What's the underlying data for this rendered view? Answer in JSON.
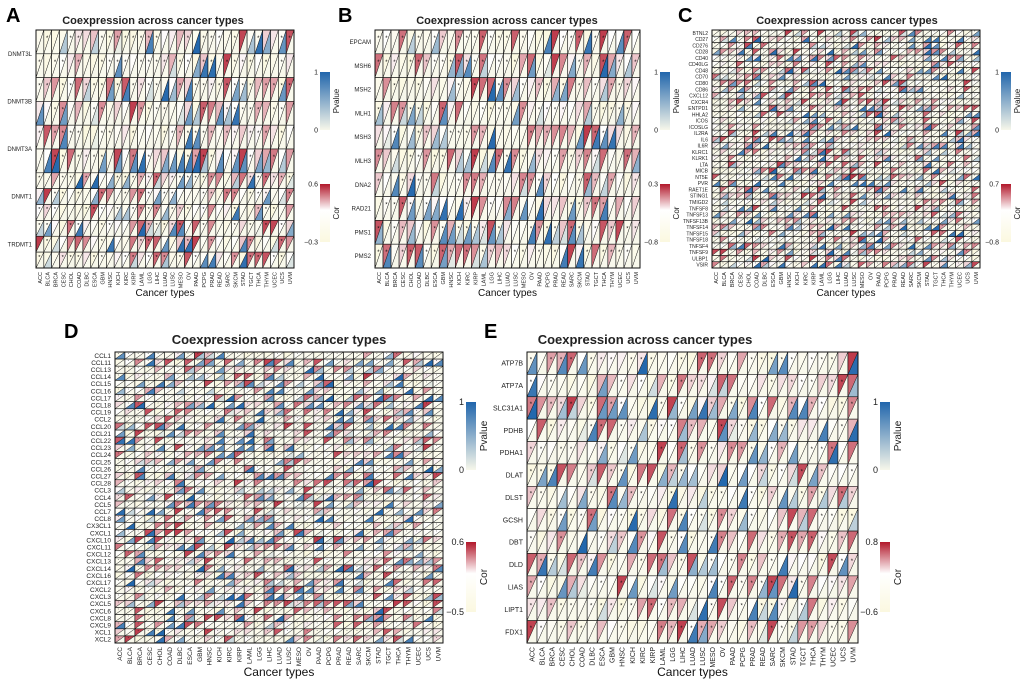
{
  "figure": {
    "panel_titles": {
      "A": "Coexpression across cancer types",
      "B": "Coexpression across cancer types",
      "C": "Coexpression across cancer types",
      "D": "Coexpression across cancer types",
      "E": "Coexpression across cancer types"
    },
    "x_axis_label": "Cancer types"
  },
  "colors": {
    "pvalue_high": "#2166ac",
    "pvalue_low": "#f7f7ea",
    "cor_high": "#b2182b",
    "cor_low": "#fbf8e0",
    "cor_mid": "#ffffff",
    "border": "#111111"
  },
  "chart_data": [
    {
      "panel": "A",
      "type": "heatmap",
      "title": "Coexpression across cancer types",
      "xlabel": "Cancer types",
      "categories": [
        "ACC",
        "BLCA",
        "BRCA",
        "CESC",
        "CHOL",
        "COAD",
        "DLBC",
        "ESCA",
        "GBM",
        "HNSC",
        "KICH",
        "KIRC",
        "KIRP",
        "LAML",
        "LGG",
        "LIHC",
        "LUAD",
        "LUSC",
        "MESO",
        "OV",
        "PAAD",
        "PCPG",
        "PRAD",
        "READ",
        "SARC",
        "SKCM",
        "STAD",
        "TGCT",
        "THCA",
        "THYM",
        "UCEC",
        "UCS",
        "UVM"
      ],
      "rows": [
        "DNMT3L",
        "DNMT3B",
        "DNMT3A",
        "DNMT1",
        "TRDMT1"
      ],
      "sub_rows": [
        2,
        2,
        2,
        3,
        3
      ],
      "legend_pvalue": {
        "label": "Pvalue",
        "max": "1",
        "min": "0"
      },
      "legend_cor": {
        "label": "Cor",
        "max": "0.6",
        "min": "−0.3"
      },
      "seed": 11
    },
    {
      "panel": "B",
      "type": "heatmap",
      "title": "Coexpression across cancer types",
      "xlabel": "Cancer types",
      "categories": [
        "ACC",
        "BLCA",
        "BRCA",
        "CESC",
        "CHOL",
        "COAD",
        "DLBC",
        "ESCA",
        "GBM",
        "HNSC",
        "KICH",
        "KIRC",
        "KIRP",
        "LAML",
        "LGG",
        "LIHC",
        "LUAD",
        "LUSC",
        "MESO",
        "OV",
        "PAAD",
        "PCPG",
        "PRAD",
        "READ",
        "SARC",
        "SKCM",
        "STAD",
        "TGCT",
        "THCA",
        "THYM",
        "UCEC",
        "UCS",
        "UVM"
      ],
      "rows": [
        "EPCAM",
        "MSH6",
        "MSH2",
        "MLH1",
        "MSH3",
        "MLH3",
        "DNA2",
        "RAD21",
        "PMS1",
        "PMS2"
      ],
      "legend_pvalue": {
        "label": "Pvalue",
        "max": "1",
        "min": "0"
      },
      "legend_cor": {
        "label": "Cor",
        "max": "0.3",
        "min": "−0.8"
      },
      "seed": 23
    },
    {
      "panel": "C",
      "type": "heatmap",
      "title": "Coexpression across cancer types",
      "xlabel": "Cancer types",
      "categories": [
        "ACC",
        "BLCA",
        "BRCA",
        "CESC",
        "CHOL",
        "COAD",
        "DLBC",
        "ESCA",
        "GBM",
        "HNSC",
        "KICH",
        "KIRC",
        "KIRP",
        "LAML",
        "LGG",
        "LIHC",
        "LUAD",
        "LUSC",
        "MESO",
        "OV",
        "PAAD",
        "PCPG",
        "PRAD",
        "READ",
        "SARC",
        "SKCM",
        "STAD",
        "TGCT",
        "THCA",
        "THYM",
        "UCEC",
        "UCS",
        "UVM"
      ],
      "rows": [
        "BTNL2",
        "CD27",
        "CD276",
        "CD28",
        "CD40",
        "CD40LG",
        "CD48",
        "CD70",
        "CD80",
        "CD86",
        "CXCL12",
        "CXCR4",
        "ENTPD1",
        "HHLA2",
        "ICOS",
        "ICOSLG",
        "IL2RA",
        "IL6",
        "IL6R",
        "KLRC1",
        "KLRK1",
        "LTA",
        "MICB",
        "NT5E",
        "PVR",
        "RAET1E",
        "STING1",
        "TMIGD2",
        "TNFSF8",
        "TNFSF13",
        "TNFSF13B",
        "TNFSF14",
        "TNFSF15",
        "TNFSF18",
        "TNFSF4",
        "TNFSF9",
        "ULBP1",
        "VSIR"
      ],
      "legend_pvalue": {
        "label": "Pvalue",
        "max": "1",
        "min": "0"
      },
      "legend_cor": {
        "label": "Cor",
        "max": "0.7",
        "min": "−0.8"
      },
      "seed": 37
    },
    {
      "panel": "D",
      "type": "heatmap",
      "title": "Coexpression across cancer types",
      "xlabel": "Cancer types",
      "categories": [
        "ACC",
        "BLCA",
        "BRCA",
        "CESC",
        "CHOL",
        "COAD",
        "DLBC",
        "ESCA",
        "GBM",
        "HNSC",
        "KICH",
        "KIRC",
        "KIRP",
        "LAML",
        "LGG",
        "LIHC",
        "LUAD",
        "LUSC",
        "MESO",
        "OV",
        "PAAD",
        "PCPG",
        "PRAD",
        "READ",
        "SARC",
        "SKCM",
        "STAD",
        "TGCT",
        "THCA",
        "THYM",
        "UCEC",
        "UCS",
        "UVM"
      ],
      "rows": [
        "CCL1",
        "CCL11",
        "CCL13",
        "CCL14",
        "CCL15",
        "CCL16",
        "CCL17",
        "CCL18",
        "CCL19",
        "CCL2",
        "CCL20",
        "CCL21",
        "CCL22",
        "CCL23",
        "CCL24",
        "CCL25",
        "CCL26",
        "CCL27",
        "CCL28",
        "CCL3",
        "CCL4",
        "CCL5",
        "CCL7",
        "CCL8",
        "CX3CL1",
        "CXCL1",
        "CXCL10",
        "CXCL11",
        "CXCL12",
        "CXCL13",
        "CXCL14",
        "CXCL16",
        "CXCL17",
        "CXCL2",
        "CXCL3",
        "CXCL5",
        "CXCL6",
        "CXCL8",
        "CXCL9",
        "XCL1",
        "XCL2"
      ],
      "legend_pvalue": {
        "label": "Pvalue",
        "max": "1",
        "min": "0"
      },
      "legend_cor": {
        "label": "Cor",
        "max": "0.6",
        "min": "−0.5"
      },
      "seed": 51
    },
    {
      "panel": "E",
      "type": "heatmap",
      "title": "Coexpression across cancer types",
      "xlabel": "Cancer types",
      "categories": [
        "ACC",
        "BLCA",
        "BRCA",
        "CESC",
        "CHOL",
        "COAD",
        "DLBC",
        "ESCA",
        "GBM",
        "HNSC",
        "KICH",
        "KIRC",
        "KIRP",
        "LAML",
        "LGG",
        "LIHC",
        "LUAD",
        "LUSC",
        "MESO",
        "OV",
        "PAAD",
        "PCPG",
        "PRAD",
        "READ",
        "SARC",
        "SKCM",
        "STAD",
        "TGCT",
        "THCA",
        "THYM",
        "UCEC",
        "UCS",
        "UVM"
      ],
      "rows": [
        "ATP7B",
        "ATP7A",
        "SLC31A1",
        "PDHB",
        "PDHA1",
        "DLAT",
        "DLST",
        "GCSH",
        "DBT",
        "DLD",
        "LIAS",
        "LIPT1",
        "FDX1"
      ],
      "legend_pvalue": {
        "label": "Pvalue",
        "max": "1",
        "min": "0"
      },
      "legend_cor": {
        "label": "Cor",
        "max": "0.8",
        "min": "−0.6"
      },
      "seed": 73
    }
  ]
}
